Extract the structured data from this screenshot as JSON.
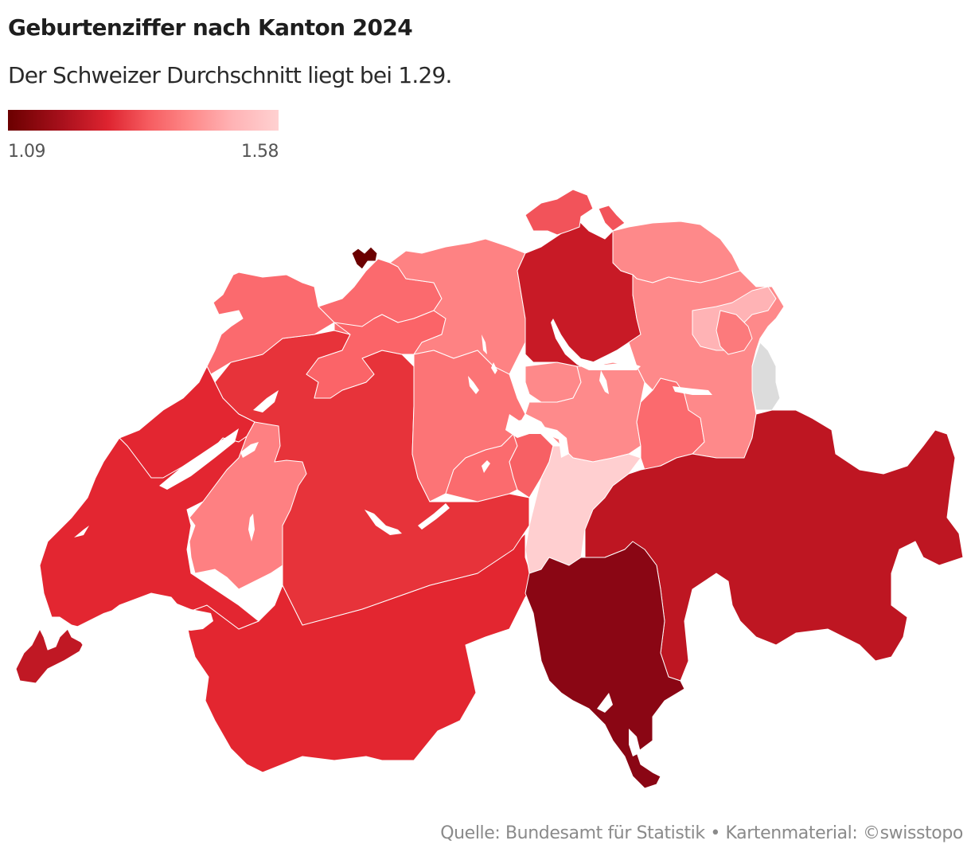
{
  "header": {
    "title": "Geburtenziffer nach Kanton 2024",
    "subtitle": "Der Schweizer Durchschnitt liegt bei 1.29."
  },
  "legend": {
    "min_label": "1.09",
    "max_label": "1.58",
    "min_color": "#6b0000",
    "max_color": "#ffd1d1"
  },
  "footer": {
    "source": "Quelle: Bundesamt für Statistik • Kartenmaterial: ©swisstopo"
  },
  "colors": {
    "no_data": "#dcdcdc",
    "border": "#ffffff",
    "lake": "#ffffff"
  },
  "chart_data": {
    "type": "choropleth-map",
    "title": "Geburtenziffer nach Kanton 2024",
    "subtitle": "Der Schweizer Durchschnitt liegt bei 1.29.",
    "scale": {
      "min": 1.09,
      "max": 1.58,
      "colors": [
        "#6b0000",
        "#de2430",
        "#fe8888",
        "#ffd1d1"
      ]
    },
    "reference": {
      "label": "Schweizer Durchschnitt",
      "value": 1.29
    },
    "regions": [
      {
        "id": "BS",
        "name": "Basel-Stadt",
        "value": 1.09,
        "color": "#6b0000"
      },
      {
        "id": "TI",
        "name": "Tessin",
        "value": 1.13,
        "color": "#8a0614"
      },
      {
        "id": "GR",
        "name": "Graubünden",
        "value": 1.21,
        "color": "#be1622"
      },
      {
        "id": "ZH",
        "name": "Zürich",
        "value": 1.22,
        "color": "#c81a26"
      },
      {
        "id": "GE",
        "name": "Genf",
        "value": 1.21,
        "color": "#c01824"
      },
      {
        "id": "VD",
        "name": "Waadt",
        "value": 1.27,
        "color": "#e32631"
      },
      {
        "id": "VS",
        "name": "Wallis",
        "value": 1.27,
        "color": "#e32630"
      },
      {
        "id": "NE",
        "name": "Neuenburg",
        "value": 1.27,
        "color": "#e32631"
      },
      {
        "id": "BE",
        "name": "Bern",
        "value": 1.29,
        "color": "#e7333a"
      },
      {
        "id": "SH",
        "name": "Schaffhausen",
        "value": 1.36,
        "color": "#f2535a"
      },
      {
        "id": "SO",
        "name": "Solothurn",
        "value": 1.4,
        "color": "#fb6468"
      },
      {
        "id": "JU",
        "name": "Jura",
        "value": 1.4,
        "color": "#fb6a6e"
      },
      {
        "id": "BL",
        "name": "Basel-Landschaft",
        "value": 1.4,
        "color": "#fb6a6e"
      },
      {
        "id": "LU",
        "name": "Luzern",
        "value": 1.43,
        "color": "#fc7476"
      },
      {
        "id": "OW",
        "name": "Obwalden",
        "value": 1.41,
        "color": "#fb6b6e"
      },
      {
        "id": "NW",
        "name": "Nidwalden",
        "value": 1.38,
        "color": "#f76064"
      },
      {
        "id": "GL",
        "name": "Glarus",
        "value": 1.4,
        "color": "#fb6a6e"
      },
      {
        "id": "AI",
        "name": "Appenzell Innerrhoden",
        "value": 1.45,
        "color": "#fc7a7c"
      },
      {
        "id": "AG",
        "name": "Aargau",
        "value": 1.46,
        "color": "#fe8283"
      },
      {
        "id": "FR",
        "name": "Freiburg",
        "value": 1.46,
        "color": "#fe8082"
      },
      {
        "id": "TG",
        "name": "Thurgau",
        "value": 1.47,
        "color": "#fe898a"
      },
      {
        "id": "SG",
        "name": "St. Gallen",
        "value": 1.47,
        "color": "#fe898a"
      },
      {
        "id": "ZG",
        "name": "Zug",
        "value": 1.47,
        "color": "#fe898a"
      },
      {
        "id": "SZ",
        "name": "Schwyz",
        "value": 1.47,
        "color": "#fe8a8b"
      },
      {
        "id": "AR",
        "name": "Appenzell Ausserrhoden",
        "value": 1.53,
        "color": "#ffb3b5"
      },
      {
        "id": "UR",
        "name": "Uri",
        "value": 1.58,
        "color": "#ffcfd0"
      },
      {
        "id": "FL",
        "name": "Liechtenstein (keine Daten)",
        "value": null,
        "color": "#dcdcdc"
      }
    ]
  }
}
